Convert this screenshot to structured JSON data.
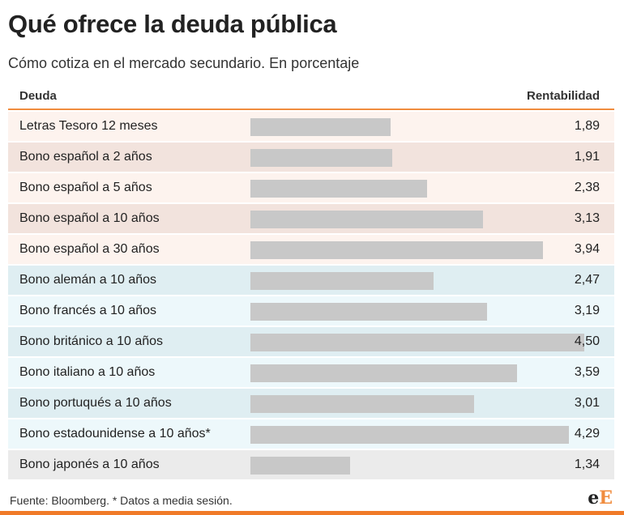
{
  "colors": {
    "accent": "#f08c3e",
    "bar": "#c8c8c8",
    "spain_row_light": "#fdf3ee",
    "spain_row_dark": "#f2e3dd",
    "foreign_row_dark": "#dfeef2",
    "foreign_row_light": "#edf8fb",
    "japan_row": "#ebebeb"
  },
  "header": {
    "title": "Qué ofrece la deuda pública",
    "subtitle": "Cómo cotiza en el mercado secundario. En porcentaje"
  },
  "table": {
    "col_left": "Deuda",
    "col_right": "Rentabilidad"
  },
  "chart_data": {
    "type": "bar",
    "orientation": "horizontal",
    "title": "Qué ofrece la deuda pública",
    "subtitle": "Cómo cotiza en el mercado secundario. En porcentaje",
    "xlabel": "",
    "ylabel": "",
    "xlim": [
      0,
      4.76
    ],
    "grid": false,
    "categories": [
      "Letras Tesoro 12 meses",
      "Bono español a 2 años",
      "Bono español a 5 años",
      "Bono español a 10 años",
      "Bono español a 30 años",
      "Bono alemán a 10 años",
      "Bono francés a 10 años",
      "Bono británico a 10 años",
      "Bono italiano a 10 años",
      "Bono portuqués a 10 años",
      "Bono estadounidense a 10 años*",
      "Bono japonés a 10 años"
    ],
    "values": [
      1.89,
      1.91,
      2.38,
      3.13,
      3.94,
      2.47,
      3.19,
      4.5,
      3.59,
      3.01,
      4.29,
      1.34
    ],
    "value_labels": [
      "1,89",
      "1,91",
      "2,38",
      "3,13",
      "3,94",
      "2,47",
      "3,19",
      "4,50",
      "3,59",
      "3,01",
      "4,29",
      "1,34"
    ]
  },
  "footer": {
    "source": "Fuente: Bloomberg. * Datos a media sesión.",
    "logo_e": "e",
    "logo_E": "E"
  }
}
